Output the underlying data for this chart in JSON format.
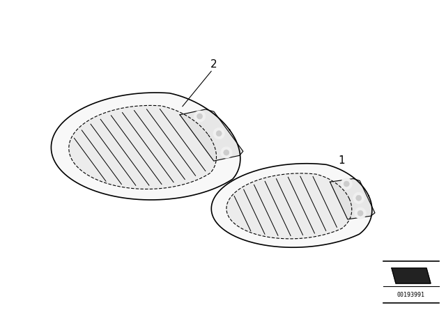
{
  "background_color": "#ffffff",
  "fig_width": 6.4,
  "fig_height": 4.48,
  "dpi": 100,
  "part_number": "00193991",
  "label_1": "1",
  "label_2": "2",
  "line_color": "#000000",
  "line_width": 0.8,
  "slat_color": "#000000",
  "fill_color": "#f5f5f5",
  "inner_fill": "#eeeeee"
}
